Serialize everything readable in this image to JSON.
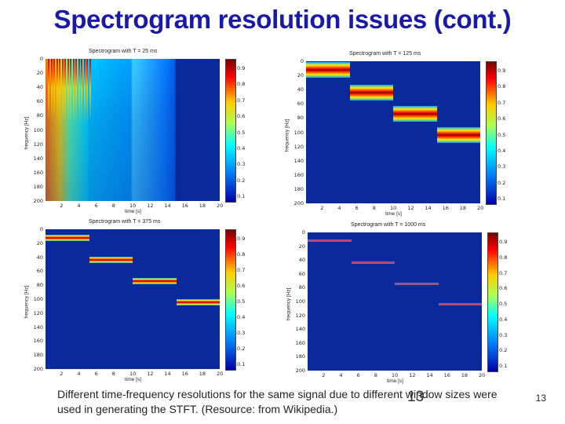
{
  "slide": {
    "title": "Spectrogram resolution issues (cont.)",
    "caption": "Different time-frequency resolutions for the same signal due to different window sizes were used in generating the STFT. (Resource: from Wikipedia.)",
    "page_number": "13",
    "overlay_number": "13"
  },
  "chart_data": [
    {
      "type": "heatmap",
      "title": "Spectrogram with T = 25 ms",
      "xlabel": "time [s]",
      "ylabel": "frequency [Hz]",
      "xticks": [
        "2",
        "4",
        "6",
        "8",
        "10",
        "12",
        "14",
        "16",
        "18",
        "20"
      ],
      "yticks": [
        "0",
        "20",
        "40",
        "60",
        "80",
        "100",
        "120",
        "140",
        "160",
        "180",
        "200"
      ],
      "colorbar_ticks": [
        "0.9",
        "0.8",
        "0.7",
        "0.6",
        "0.5",
        "0.4",
        "0.3",
        "0.2",
        "0.1"
      ]
    },
    {
      "type": "heatmap",
      "title": "Spectrogram with T = 125 ms",
      "xlabel": "time [s]",
      "ylabel": "frequency [Hz]",
      "xticks": [
        "2",
        "4",
        "6",
        "8",
        "10",
        "12",
        "14",
        "16",
        "18",
        "20"
      ],
      "yticks": [
        "0",
        "20",
        "40",
        "60",
        "80",
        "100",
        "120",
        "140",
        "160",
        "180",
        "200"
      ],
      "colorbar_ticks": [
        "0.9",
        "0.8",
        "0.7",
        "0.6",
        "0.5",
        "0.4",
        "0.3",
        "0.2",
        "0.1"
      ]
    },
    {
      "type": "heatmap",
      "title": "Spectrogram with T = 375 ms",
      "xlabel": "time [s]",
      "ylabel": "frequency [Hz]",
      "xticks": [
        "2",
        "4",
        "6",
        "8",
        "10",
        "12",
        "14",
        "16",
        "18",
        "20"
      ],
      "yticks": [
        "0",
        "20",
        "40",
        "60",
        "80",
        "100",
        "120",
        "140",
        "160",
        "180",
        "200"
      ],
      "colorbar_ticks": [
        "0.9",
        "0.8",
        "0.7",
        "0.6",
        "0.5",
        "0.4",
        "0.3",
        "0.2",
        "0.1"
      ]
    },
    {
      "type": "heatmap",
      "title": "Spectrogram with T = 1000 ms",
      "xlabel": "time [s]",
      "ylabel": "frequency [Hz]",
      "xticks": [
        "2",
        "4",
        "6",
        "8",
        "10",
        "12",
        "14",
        "16",
        "18",
        "20"
      ],
      "yticks": [
        "0",
        "20",
        "40",
        "60",
        "80",
        "100",
        "120",
        "140",
        "160",
        "180",
        "200"
      ],
      "colorbar_ticks": [
        "0.9",
        "0.8",
        "0.7",
        "0.6",
        "0.5",
        "0.4",
        "0.3",
        "0.2",
        "0.1"
      ]
    }
  ]
}
